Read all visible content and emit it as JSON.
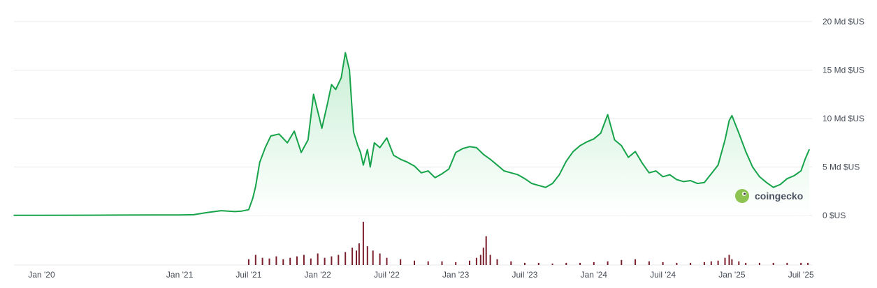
{
  "colors": {
    "line": "#16a34a",
    "area_top": "#c9efd5",
    "area_bottom": "#ffffff",
    "volume": "#7a1f2b",
    "grid": "#e6e8ec",
    "logo": "#8cc351"
  },
  "logo": {
    "text": "coingecko",
    "icon": "gecko-logo-icon"
  },
  "chart_data": [
    {
      "type": "area",
      "title": "",
      "xlabel": "",
      "ylabel": "",
      "y_ticks": [
        "0 $US",
        "5 Md $US",
        "10 Md $US",
        "15 Md $US",
        "20 Md $US"
      ],
      "y_tick_values": [
        0,
        5,
        10,
        15,
        20
      ],
      "ylim": [
        0,
        20
      ],
      "x_ticks": [
        "Jan '20",
        "Jan '21",
        "Juil '21",
        "Jan '22",
        "Juil '22",
        "Jan '23",
        "Juil '23",
        "Jan '24",
        "Juil '24",
        "Jan '25",
        "Juil '25"
      ],
      "x_tick_values": [
        2020.0,
        2021.0,
        2021.5,
        2022.0,
        2022.5,
        2023.0,
        2023.5,
        2024.0,
        2024.5,
        2025.0,
        2025.5
      ],
      "xlim": [
        2019.8,
        2025.58
      ],
      "unit": "Md $US",
      "grid": true,
      "series": [
        {
          "x": [
            2019.8,
            2020.0,
            2020.3,
            2020.6,
            2020.8,
            2021.0,
            2021.1,
            2021.2,
            2021.3,
            2021.4,
            2021.45,
            2021.5,
            2021.53,
            2021.55,
            2021.58,
            2021.62,
            2021.66,
            2021.72,
            2021.78,
            2021.83,
            2021.88,
            2021.93,
            2021.97,
            2022.03,
            2022.07,
            2022.1,
            2022.13,
            2022.17,
            2022.2,
            2022.23,
            2022.26,
            2022.29,
            2022.31,
            2022.33,
            2022.36,
            2022.38,
            2022.41,
            2022.45,
            2022.5,
            2022.55,
            2022.6,
            2022.65,
            2022.7,
            2022.75,
            2022.8,
            2022.85,
            2022.9,
            2022.95,
            2023.0,
            2023.05,
            2023.1,
            2023.15,
            2023.2,
            2023.25,
            2023.3,
            2023.35,
            2023.4,
            2023.45,
            2023.5,
            2023.55,
            2023.6,
            2023.65,
            2023.7,
            2023.75,
            2023.8,
            2023.85,
            2023.9,
            2023.95,
            2024.0,
            2024.05,
            2024.1,
            2024.15,
            2024.2,
            2024.25,
            2024.3,
            2024.35,
            2024.4,
            2024.45,
            2024.5,
            2024.55,
            2024.6,
            2024.65,
            2024.7,
            2024.75,
            2024.8,
            2024.85,
            2024.9,
            2024.95,
            2024.98,
            2025.0,
            2025.05,
            2025.1,
            2025.15,
            2025.2,
            2025.25,
            2025.3,
            2025.35,
            2025.4,
            2025.45,
            2025.5,
            2025.53,
            2025.56
          ],
          "values": [
            0.02,
            0.02,
            0.03,
            0.04,
            0.05,
            0.06,
            0.08,
            0.3,
            0.5,
            0.4,
            0.45,
            0.6,
            1.8,
            3.0,
            5.5,
            7.0,
            8.2,
            8.4,
            7.5,
            8.7,
            6.5,
            7.8,
            12.5,
            9.0,
            11.5,
            13.5,
            13.0,
            14.2,
            16.8,
            15.0,
            8.6,
            7.2,
            6.5,
            5.2,
            6.8,
            5.0,
            7.5,
            7.0,
            8.0,
            6.2,
            5.8,
            5.5,
            5.1,
            4.4,
            4.6,
            3.9,
            4.3,
            4.8,
            6.5,
            6.9,
            7.1,
            7.0,
            6.3,
            5.8,
            5.2,
            4.6,
            4.4,
            4.2,
            3.8,
            3.3,
            3.1,
            2.9,
            3.3,
            4.2,
            5.6,
            6.6,
            7.2,
            7.6,
            7.9,
            8.5,
            10.4,
            7.8,
            7.2,
            6.0,
            6.6,
            5.4,
            4.4,
            4.6,
            4.0,
            4.2,
            3.7,
            3.5,
            3.6,
            3.3,
            3.4,
            4.3,
            5.2,
            7.8,
            9.8,
            10.3,
            8.5,
            6.6,
            5.0,
            4.0,
            3.4,
            2.9,
            3.2,
            3.8,
            4.1,
            4.6,
            5.8,
            6.8
          ]
        }
      ]
    },
    {
      "type": "bar",
      "title": "",
      "xlabel": "",
      "ylabel": "",
      "series": [
        {
          "x": [
            2021.5,
            2021.55,
            2021.6,
            2021.65,
            2021.7,
            2021.75,
            2021.8,
            2021.85,
            2021.9,
            2021.95,
            2022.0,
            2022.05,
            2022.1,
            2022.15,
            2022.2,
            2022.25,
            2022.28,
            2022.3,
            2022.33,
            2022.36,
            2022.4,
            2022.45,
            2022.5,
            2022.6,
            2022.7,
            2022.8,
            2022.9,
            2023.0,
            2023.1,
            2023.15,
            2023.18,
            2023.2,
            2023.22,
            2023.25,
            2023.3,
            2023.4,
            2023.5,
            2023.6,
            2023.7,
            2023.8,
            2023.9,
            2024.0,
            2024.1,
            2024.2,
            2024.3,
            2024.4,
            2024.5,
            2024.6,
            2024.7,
            2024.8,
            2024.85,
            2024.9,
            2024.95,
            2024.98,
            2025.0,
            2025.05,
            2025.1,
            2025.2,
            2025.3,
            2025.4,
            2025.5,
            2025.55
          ],
          "values": [
            8,
            14,
            10,
            9,
            12,
            8,
            10,
            12,
            14,
            9,
            16,
            10,
            12,
            14,
            18,
            24,
            20,
            30,
            60,
            26,
            20,
            16,
            10,
            8,
            6,
            5,
            5,
            4,
            6,
            10,
            14,
            24,
            40,
            14,
            8,
            5,
            3,
            3,
            2,
            3,
            3,
            4,
            5,
            7,
            8,
            5,
            4,
            3,
            3,
            4,
            5,
            6,
            10,
            14,
            8,
            5,
            3,
            3,
            3,
            3,
            3,
            3
          ]
        }
      ]
    }
  ]
}
